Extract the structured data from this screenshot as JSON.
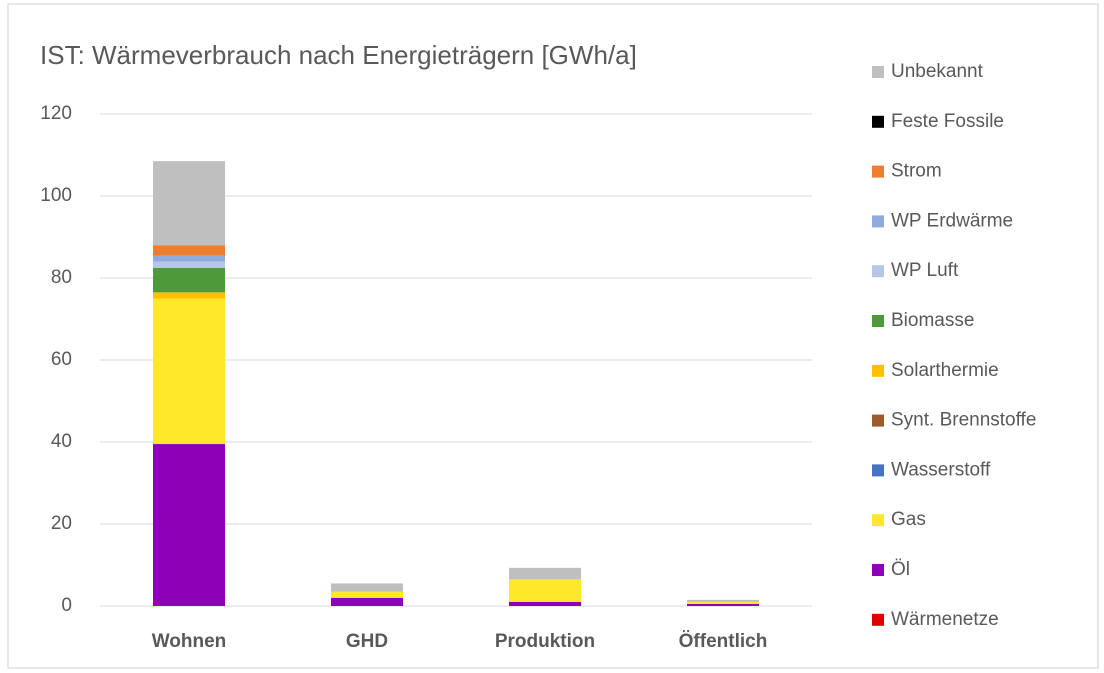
{
  "chart_data": {
    "type": "stacked_bar",
    "title": "IST: Wärmeverbrauch nach Energieträgern [GWh/a]",
    "categories": [
      "Wohnen",
      "GHD",
      "Produktion",
      "Öffentlich"
    ],
    "series": [
      {
        "name": "Wärmenetze",
        "color": "#e00000",
        "values": [
          0,
          0,
          0,
          0
        ]
      },
      {
        "name": "Öl",
        "color": "#8e00b8",
        "values": [
          39.5,
          2,
          1,
          0.5
        ]
      },
      {
        "name": "Gas",
        "color": "#ffe82a",
        "values": [
          35.5,
          1.5,
          5.5,
          0.5
        ]
      },
      {
        "name": "Wasserstoff",
        "color": "#4472c4",
        "values": [
          0,
          0,
          0,
          0
        ]
      },
      {
        "name": "Synt. Brennstoffe",
        "color": "#9c5b2c",
        "values": [
          0,
          0,
          0,
          0
        ]
      },
      {
        "name": "Solarthermie",
        "color": "#ffc000",
        "values": [
          1.5,
          0,
          0,
          0
        ]
      },
      {
        "name": "Biomasse",
        "color": "#4e9a3a",
        "values": [
          6,
          0,
          0,
          0
        ]
      },
      {
        "name": "WP Luft",
        "color": "#b4c7e7",
        "values": [
          1.5,
          0,
          0,
          0
        ]
      },
      {
        "name": "WP Erdwärme",
        "color": "#8faadc",
        "values": [
          1.5,
          0,
          0,
          0
        ]
      },
      {
        "name": "Strom",
        "color": "#ed7d31",
        "values": [
          2.5,
          0,
          0,
          0
        ]
      },
      {
        "name": "Feste Fossile",
        "color": "#000000",
        "values": [
          0,
          0,
          0,
          0
        ]
      },
      {
        "name": "Unbekannt",
        "color": "#bfbfbf",
        "values": [
          20.5,
          2,
          2.8,
          0.5
        ]
      }
    ],
    "ylim": [
      0,
      120
    ],
    "yticks": [
      0,
      20,
      40,
      60,
      80,
      100,
      120
    ],
    "grid": true
  }
}
